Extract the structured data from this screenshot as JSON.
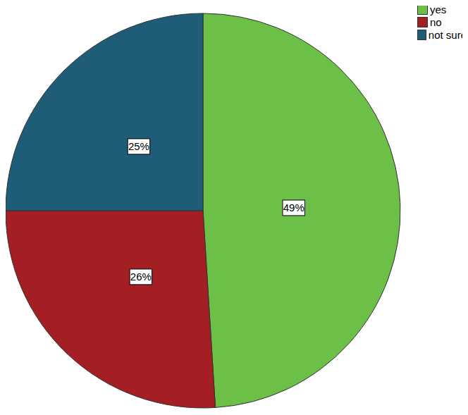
{
  "chart_data": {
    "type": "pie",
    "categories": [
      "yes",
      "no",
      "not sure"
    ],
    "values": [
      49,
      26,
      25
    ],
    "value_labels": [
      "49%",
      "26%",
      "25%"
    ],
    "colors": [
      "#6cbf47",
      "#a31f24",
      "#1f5c78"
    ],
    "data_labels": true,
    "legend": "upper right"
  }
}
